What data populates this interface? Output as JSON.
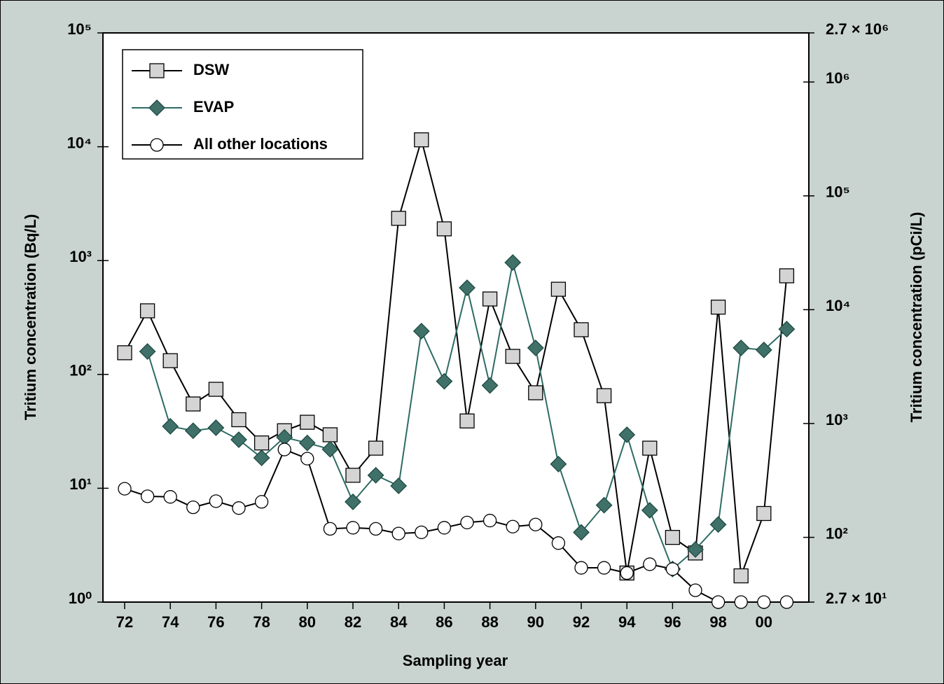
{
  "chart_data": {
    "type": "line",
    "x_label": "Sampling year",
    "y_label": "Tritium concentration (Bq/L)",
    "y2_label": "Tritium concentration (pCi/L)",
    "log_y": true,
    "categories": [
      "72",
      null,
      "74",
      null,
      "76",
      null,
      "78",
      null,
      "80",
      null,
      "82",
      null,
      "84",
      null,
      "86",
      null,
      "88",
      null,
      "90",
      null,
      "92",
      null,
      "94",
      null,
      "96",
      null,
      "98",
      null,
      "00",
      null
    ],
    "ylim": [
      1,
      100000
    ],
    "yticks": [
      {
        "value": 1,
        "label": "10⁰"
      },
      {
        "value": 10,
        "label": "10¹"
      },
      {
        "value": 100,
        "label": "10²"
      },
      {
        "value": 1000,
        "label": "10³"
      },
      {
        "value": 10000,
        "label": "10⁴"
      },
      {
        "value": 100000,
        "label": "10⁵"
      }
    ],
    "y2lim": [
      27,
      2700000
    ],
    "y2ticks": [
      {
        "value": 27,
        "label": "2.7 × 10¹"
      },
      {
        "value": 100,
        "label": "10²"
      },
      {
        "value": 1000,
        "label": "10³"
      },
      {
        "value": 10000,
        "label": "10⁴"
      },
      {
        "value": 100000,
        "label": "10⁵"
      },
      {
        "value": 1000000,
        "label": "10⁶"
      },
      {
        "value": 2700000,
        "label": "2.7 × 10⁶"
      }
    ],
    "legend": "upper left",
    "series": [
      {
        "name": "DSW",
        "color": "#000000",
        "marker": "square",
        "marker_color": "#d4d4d4",
        "values": [
          155,
          362,
          132,
          55,
          74,
          40,
          25,
          32,
          38,
          29.5,
          13,
          22.5,
          2350,
          11500,
          1900,
          39,
          460,
          144,
          69,
          560,
          247,
          65,
          1.8,
          22.5,
          3.7,
          2.7,
          390,
          1.7,
          6.0,
          735
        ]
      },
      {
        "name": "EVAP",
        "color": "#2e6b63",
        "marker": "diamond",
        "marker_color": "#3f7169",
        "values": [
          null,
          159,
          35,
          32,
          34,
          26.7,
          18.5,
          28,
          25,
          22,
          7.6,
          13,
          10.5,
          240,
          87,
          577,
          80,
          961,
          171,
          16.3,
          4.1,
          7.1,
          29.5,
          6.4,
          1.95,
          2.9,
          4.8,
          171,
          164,
          250
        ]
      },
      {
        "name": "All other locations",
        "color": "#000000",
        "marker": "circle",
        "marker_color": "#ffffff",
        "values": [
          9.9,
          8.5,
          8.4,
          6.8,
          7.7,
          6.7,
          7.6,
          21.9,
          18.2,
          4.4,
          4.5,
          4.4,
          4.0,
          4.1,
          4.5,
          5.0,
          5.2,
          4.6,
          4.8,
          3.3,
          2.0,
          2.0,
          1.8,
          2.15,
          1.95,
          1.27,
          1.0,
          1.0,
          1.0,
          1.0
        ]
      }
    ]
  }
}
